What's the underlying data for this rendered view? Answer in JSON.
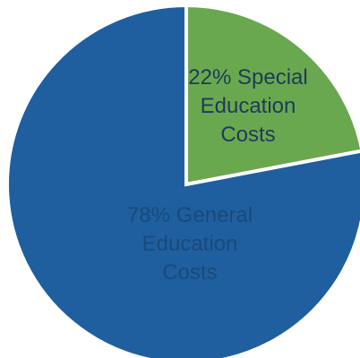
{
  "chart_data": {
    "type": "pie",
    "categories": [
      "Special Education Costs",
      "General Education Costs"
    ],
    "values": [
      22,
      78
    ],
    "unit": "%",
    "colors": [
      "#6aa84f",
      "#1f5fa0"
    ],
    "label_colors": [
      "#1f3a5a",
      "#1a4a7a"
    ],
    "data_labels": [
      [
        "22% Special",
        "Education",
        "Costs"
      ],
      [
        "78% General",
        "Education",
        "Costs"
      ]
    ],
    "start_angle_deg": 0,
    "direction": "clockwise",
    "legend": "none"
  }
}
